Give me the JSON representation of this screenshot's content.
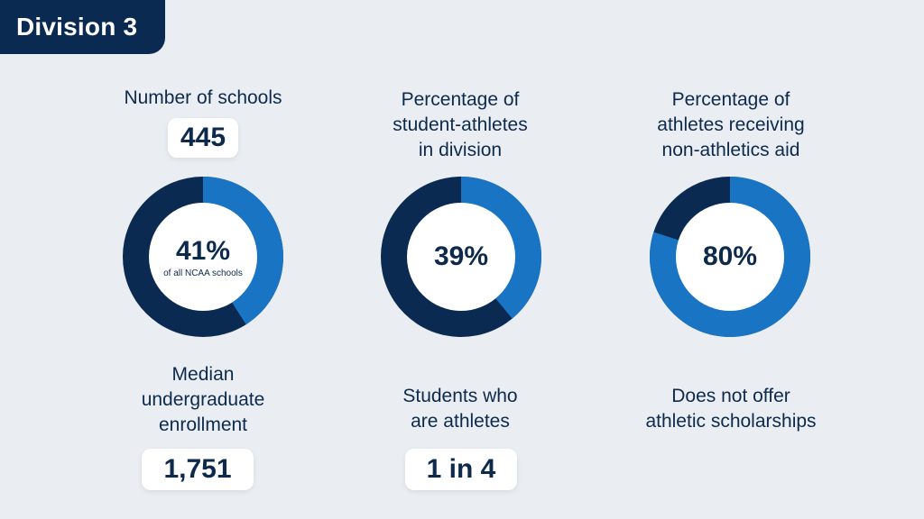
{
  "title": "Division 3",
  "colors": {
    "dark": "#0b2a52",
    "light": "#1a74c4",
    "background": "#eaeef3"
  },
  "stats": [
    {
      "label": "Number of schools",
      "value": "445"
    },
    {
      "label": "Median\nundergraduate\nenrollment",
      "value": "1,751"
    },
    {
      "label": "Students who\nare athletes",
      "value": "1 in 4"
    }
  ],
  "donut_labels": [
    "Percentage of\nstudent-athletes\nin division",
    "Percentage of\nathletes receiving\nnon-athletics aid",
    "Does not offer\nathletic scholarships"
  ],
  "chart_data": [
    {
      "type": "pie",
      "labels": [
        "NCAA schools"
      ],
      "values": [
        41
      ],
      "center_text": "41%",
      "center_subtext": "of all NCAA schools"
    },
    {
      "type": "pie",
      "labels": [
        "student-athletes in division"
      ],
      "values": [
        39
      ],
      "center_text": "39%"
    },
    {
      "type": "pie",
      "labels": [
        "athletes receiving non-athletics aid"
      ],
      "values": [
        80
      ],
      "center_text": "80%"
    }
  ]
}
